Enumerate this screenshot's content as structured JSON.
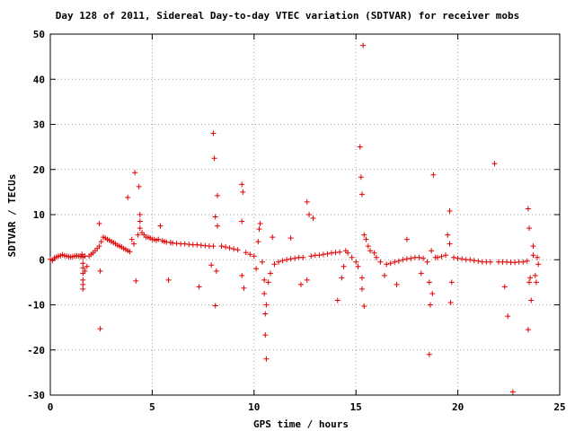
{
  "chart_data": {
    "type": "scatter",
    "title": "Day 128 of 2011, Sidereal Day-to-day VTEC variation (SDTVAR) for receiver mobs",
    "xlabel": "GPS time / hours",
    "ylabel": "SDTVAR / TECUs",
    "xlim": [
      0,
      25
    ],
    "ylim": [
      -30,
      50
    ],
    "xticks": [
      "0",
      "5",
      "10",
      "15",
      "20",
      "25"
    ],
    "yticks": [
      "-30",
      "-20",
      "-10",
      "0",
      "10",
      "20",
      "30",
      "40",
      "50"
    ],
    "grid": true,
    "marker": "plus",
    "color": "#e00000",
    "series": [
      {
        "values": [
          [
            0.0,
            0.1
          ],
          [
            0.1,
            -0.2
          ],
          [
            0.2,
            0.4
          ],
          [
            0.3,
            0.6
          ],
          [
            0.4,
            0.8
          ],
          [
            0.5,
            0.9
          ],
          [
            0.6,
            1.1
          ],
          [
            0.7,
            0.9
          ],
          [
            0.8,
            0.8
          ],
          [
            0.9,
            0.7
          ],
          [
            1.0,
            0.6
          ],
          [
            1.1,
            0.7
          ],
          [
            1.2,
            0.8
          ],
          [
            1.3,
            0.9
          ],
          [
            1.4,
            0.8
          ],
          [
            1.5,
            0.7
          ],
          [
            1.6,
            0.6
          ],
          [
            1.7,
            0.8
          ],
          [
            1.55,
            1.2
          ],
          [
            1.6,
            -0.8
          ],
          [
            1.6,
            -1.8
          ],
          [
            1.6,
            -3.0
          ],
          [
            1.6,
            -4.5
          ],
          [
            1.6,
            -5.5
          ],
          [
            1.6,
            -6.5
          ],
          [
            1.7,
            -2.5
          ],
          [
            1.8,
            -1.5
          ],
          [
            1.9,
            0.8
          ],
          [
            2.0,
            1.2
          ],
          [
            2.1,
            1.5
          ],
          [
            2.2,
            2.0
          ],
          [
            2.3,
            2.5
          ],
          [
            2.4,
            3.0
          ],
          [
            2.4,
            8.0
          ],
          [
            2.45,
            -15.3
          ],
          [
            2.45,
            -2.5
          ],
          [
            2.5,
            4.0
          ],
          [
            2.6,
            5.0
          ],
          [
            2.7,
            4.8
          ],
          [
            2.8,
            4.5
          ],
          [
            2.9,
            4.3
          ],
          [
            3.0,
            4.0
          ],
          [
            3.1,
            3.8
          ],
          [
            3.2,
            3.5
          ],
          [
            3.3,
            3.2
          ],
          [
            3.4,
            3.0
          ],
          [
            3.5,
            2.8
          ],
          [
            3.6,
            2.5
          ],
          [
            3.7,
            2.3
          ],
          [
            3.8,
            2.0
          ],
          [
            3.9,
            1.8
          ],
          [
            3.8,
            13.8
          ],
          [
            4.0,
            4.5
          ],
          [
            4.1,
            3.5
          ],
          [
            4.15,
            19.3
          ],
          [
            4.2,
            -4.7
          ],
          [
            4.3,
            5.5
          ],
          [
            4.35,
            16.2
          ],
          [
            4.4,
            10.0
          ],
          [
            4.4,
            8.5
          ],
          [
            4.4,
            7.0
          ],
          [
            4.5,
            6.0
          ],
          [
            4.6,
            5.5
          ],
          [
            4.7,
            5.0
          ],
          [
            4.8,
            5.0
          ],
          [
            4.9,
            4.8
          ],
          [
            5.0,
            4.5
          ],
          [
            5.1,
            4.5
          ],
          [
            5.2,
            4.3
          ],
          [
            5.3,
            4.5
          ],
          [
            5.4,
            7.5
          ],
          [
            5.5,
            4.2
          ],
          [
            5.6,
            4.0
          ],
          [
            5.7,
            3.9
          ],
          [
            5.8,
            -4.5
          ],
          [
            5.9,
            3.8
          ],
          [
            6.0,
            3.7
          ],
          [
            6.2,
            3.6
          ],
          [
            6.4,
            3.5
          ],
          [
            6.6,
            3.5
          ],
          [
            6.8,
            3.4
          ],
          [
            7.0,
            3.3
          ],
          [
            7.2,
            3.3
          ],
          [
            7.3,
            -6.0
          ],
          [
            7.4,
            3.2
          ],
          [
            7.6,
            3.1
          ],
          [
            7.8,
            3.0
          ],
          [
            7.9,
            -1.2
          ],
          [
            8.0,
            3.0
          ],
          [
            8.0,
            28.0
          ],
          [
            8.05,
            22.5
          ],
          [
            8.1,
            9.5
          ],
          [
            8.1,
            -10.2
          ],
          [
            8.2,
            14.2
          ],
          [
            8.15,
            -2.5
          ],
          [
            8.2,
            7.5
          ],
          [
            8.4,
            3.0
          ],
          [
            8.6,
            2.8
          ],
          [
            8.8,
            2.6
          ],
          [
            9.0,
            2.4
          ],
          [
            9.2,
            2.2
          ],
          [
            9.4,
            16.7
          ],
          [
            9.45,
            15.0
          ],
          [
            9.4,
            8.5
          ],
          [
            9.4,
            -3.5
          ],
          [
            9.5,
            -6.3
          ],
          [
            9.6,
            1.6
          ],
          [
            9.8,
            1.2
          ],
          [
            10.0,
            0.8
          ],
          [
            10.1,
            -2.0
          ],
          [
            10.2,
            4.0
          ],
          [
            10.25,
            6.8
          ],
          [
            10.3,
            8.0
          ],
          [
            10.4,
            -0.5
          ],
          [
            10.5,
            -4.5
          ],
          [
            10.5,
            -7.5
          ],
          [
            10.55,
            -12.0
          ],
          [
            10.6,
            -10.0
          ],
          [
            10.55,
            -16.7
          ],
          [
            10.6,
            -22.0
          ],
          [
            10.7,
            -5.0
          ],
          [
            10.8,
            -3.0
          ],
          [
            10.9,
            5.0
          ],
          [
            11.0,
            -1.0
          ],
          [
            11.2,
            -0.5
          ],
          [
            11.4,
            -0.2
          ],
          [
            11.6,
            0.0
          ],
          [
            11.8,
            0.2
          ],
          [
            12.0,
            0.3
          ],
          [
            11.8,
            4.8
          ],
          [
            12.2,
            0.5
          ],
          [
            12.3,
            -5.5
          ],
          [
            12.4,
            0.5
          ],
          [
            12.6,
            12.8
          ],
          [
            12.7,
            10.0
          ],
          [
            12.6,
            -4.5
          ],
          [
            12.8,
            0.8
          ],
          [
            12.9,
            9.2
          ],
          [
            13.0,
            1.0
          ],
          [
            13.2,
            1.0
          ],
          [
            13.4,
            1.2
          ],
          [
            13.6,
            1.3
          ],
          [
            13.8,
            1.5
          ],
          [
            14.0,
            1.6
          ],
          [
            14.1,
            -9.0
          ],
          [
            14.2,
            1.7
          ],
          [
            14.3,
            -4.0
          ],
          [
            14.4,
            -1.5
          ],
          [
            14.5,
            2.0
          ],
          [
            14.6,
            1.5
          ],
          [
            14.8,
            0.5
          ],
          [
            15.0,
            -0.5
          ],
          [
            15.1,
            -1.5
          ],
          [
            15.2,
            25.0
          ],
          [
            15.25,
            18.3
          ],
          [
            15.3,
            14.5
          ],
          [
            15.35,
            47.5
          ],
          [
            15.3,
            -6.5
          ],
          [
            15.4,
            -10.3
          ],
          [
            15.3,
            -4.0
          ],
          [
            15.4,
            5.5
          ],
          [
            15.5,
            4.5
          ],
          [
            15.6,
            3.0
          ],
          [
            15.7,
            2.0
          ],
          [
            15.9,
            1.5
          ],
          [
            16.0,
            0.5
          ],
          [
            16.2,
            -0.5
          ],
          [
            16.4,
            -3.5
          ],
          [
            16.5,
            -1.0
          ],
          [
            16.7,
            -0.8
          ],
          [
            16.9,
            -0.5
          ],
          [
            17.0,
            -5.5
          ],
          [
            17.1,
            -0.3
          ],
          [
            17.3,
            0.0
          ],
          [
            17.5,
            0.2
          ],
          [
            17.5,
            4.5
          ],
          [
            17.7,
            0.3
          ],
          [
            17.9,
            0.5
          ],
          [
            18.1,
            0.5
          ],
          [
            18.2,
            -3.0
          ],
          [
            18.3,
            0.3
          ],
          [
            18.5,
            -0.5
          ],
          [
            18.6,
            -5.0
          ],
          [
            18.65,
            -10.0
          ],
          [
            18.6,
            -21.0
          ],
          [
            18.7,
            2.0
          ],
          [
            18.75,
            -7.5
          ],
          [
            18.8,
            18.8
          ],
          [
            18.9,
            0.5
          ],
          [
            19.0,
            0.5
          ],
          [
            19.2,
            0.7
          ],
          [
            19.4,
            1.0
          ],
          [
            19.5,
            5.5
          ],
          [
            19.6,
            10.8
          ],
          [
            19.6,
            3.5
          ],
          [
            19.65,
            -9.5
          ],
          [
            19.7,
            -5.0
          ],
          [
            19.8,
            0.5
          ],
          [
            20.0,
            0.3
          ],
          [
            20.2,
            0.2
          ],
          [
            20.4,
            0.0
          ],
          [
            20.6,
            0.0
          ],
          [
            20.8,
            -0.2
          ],
          [
            21.0,
            -0.3
          ],
          [
            21.2,
            -0.5
          ],
          [
            21.4,
            -0.5
          ],
          [
            21.6,
            -0.5
          ],
          [
            21.8,
            21.3
          ],
          [
            22.0,
            -0.5
          ],
          [
            22.2,
            -0.5
          ],
          [
            22.3,
            -6.0
          ],
          [
            22.45,
            -12.5
          ],
          [
            22.4,
            -0.5
          ],
          [
            22.6,
            -0.6
          ],
          [
            22.7,
            -29.3
          ],
          [
            22.8,
            -0.6
          ],
          [
            23.0,
            -0.5
          ],
          [
            23.2,
            -0.5
          ],
          [
            23.4,
            -0.3
          ],
          [
            23.45,
            11.3
          ],
          [
            23.5,
            7.0
          ],
          [
            23.45,
            -15.5
          ],
          [
            23.5,
            -5.0
          ],
          [
            23.55,
            -4.0
          ],
          [
            23.6,
            -9.0
          ],
          [
            23.7,
            1.0
          ],
          [
            23.7,
            3.0
          ],
          [
            23.8,
            -3.5
          ],
          [
            23.85,
            -5.0
          ],
          [
            23.9,
            0.5
          ],
          [
            23.95,
            -1.0
          ]
        ]
      }
    ]
  }
}
